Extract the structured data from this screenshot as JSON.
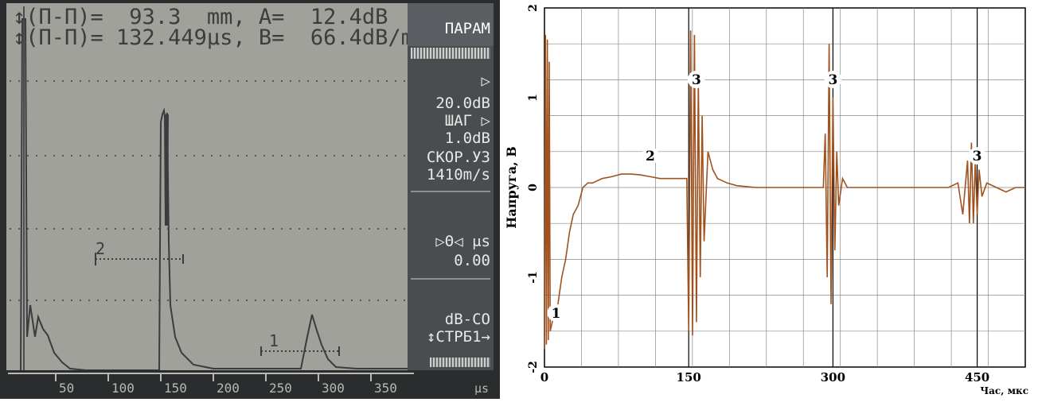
{
  "device": {
    "readout": {
      "row1": "↕(П-П)=  93.3  mm, A=  12.4dB",
      "row2": "↕(П-П)= 132.449μs, B=  66.4dB/m"
    },
    "panel": {
      "title": "ПАРАМ",
      "gain_arrow": "▷",
      "gain_value": "20.0dB",
      "step_label": "ШАГ ▷",
      "step_value": "1.0dB",
      "velocity_label": "СКОР.УЗ",
      "velocity_value": "1410m/s",
      "delay_label": "▷Θ◁ μs",
      "delay_value": "0.00",
      "mode_label": "dB-CO",
      "page_label": "↕СТРБ1→"
    },
    "gate_labels": {
      "gate2": "2",
      "gate1": "1"
    },
    "scale": {
      "ticks": [
        "50",
        "100",
        "150",
        "200",
        "250",
        "300",
        "350"
      ],
      "unit": "μs"
    }
  },
  "chart_data": {
    "type": "line",
    "ylabel": "Напруга, В",
    "xlabel": "Час, мкс",
    "xlim": [
      0,
      500
    ],
    "ylim": [
      -2,
      2
    ],
    "x_ticks": [
      "0",
      "150",
      "300",
      "450"
    ],
    "y_ticks": [
      "2",
      "1",
      "0",
      "-1",
      "-2"
    ],
    "grid": true,
    "color": "#a0521e",
    "annotations": [
      {
        "label": "1",
        "x": 12,
        "y": -1.45
      },
      {
        "label": "2",
        "x": 110,
        "y": 0.3
      },
      {
        "label": "3",
        "x": 158,
        "y": 1.15
      },
      {
        "label": "3",
        "x": 300,
        "y": 1.15
      },
      {
        "label": "3",
        "x": 450,
        "y": 0.3
      }
    ],
    "series": [
      {
        "x": [
          0,
          1,
          2,
          3,
          4,
          5,
          6,
          8,
          10,
          14,
          18,
          22,
          26,
          30,
          35,
          40,
          45,
          50,
          60,
          70,
          80,
          90,
          100,
          110,
          120,
          130,
          140,
          148,
          150,
          152,
          154,
          156,
          158,
          160,
          162,
          164,
          166,
          170,
          175,
          180,
          190,
          200,
          220,
          240,
          260,
          280,
          290,
          292,
          294,
          296,
          298,
          300,
          302,
          304,
          306,
          310,
          315,
          320,
          340,
          360,
          380,
          400,
          420,
          430,
          435,
          440,
          442,
          444,
          446,
          448,
          450,
          452,
          455,
          460,
          470,
          480,
          490,
          500
        ],
        "y": [
          -1.8,
          1.7,
          -1.75,
          1.65,
          -1.7,
          1.4,
          -1.6,
          -1.5,
          -1.4,
          -1.3,
          -1.0,
          -0.8,
          -0.5,
          -0.3,
          -0.2,
          0.0,
          0.05,
          0.05,
          0.1,
          0.12,
          0.15,
          0.15,
          0.14,
          0.12,
          0.1,
          0.1,
          0.1,
          0.1,
          -1.6,
          1.75,
          -1.65,
          1.7,
          -1.5,
          1.2,
          -1.0,
          0.8,
          -0.6,
          0.4,
          0.2,
          0.1,
          0.05,
          0.02,
          0.0,
          0.0,
          0.0,
          0.0,
          0.0,
          0.6,
          -1.0,
          1.6,
          -1.3,
          1.0,
          -0.7,
          0.4,
          -0.2,
          0.1,
          0.0,
          0.0,
          0.0,
          0.0,
          0.0,
          0.0,
          0.0,
          0.05,
          -0.3,
          0.3,
          -0.4,
          0.5,
          -0.4,
          0.3,
          -0.3,
          0.2,
          -0.1,
          0.05,
          0.0,
          -0.05,
          0.0,
          0.0
        ]
      }
    ]
  }
}
